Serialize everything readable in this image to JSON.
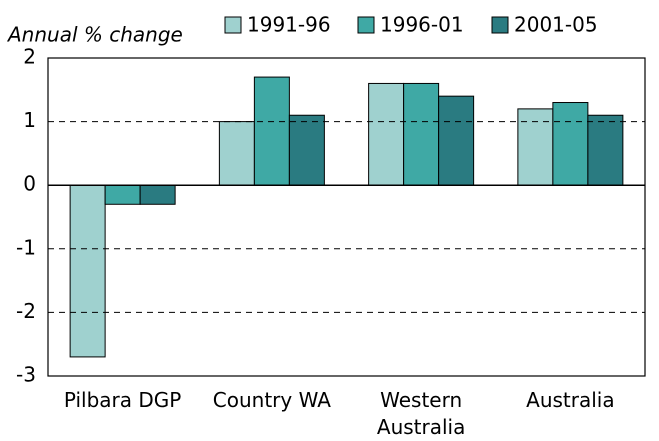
{
  "chart_data": {
    "type": "bar",
    "y_axis_label": "Annual % change",
    "categories": [
      "Pilbara DGP",
      "Country WA",
      "Western Australia",
      "Australia"
    ],
    "series": [
      {
        "name": "1991-96",
        "color": "#9fd1cf",
        "values": [
          -2.7,
          1.0,
          1.6,
          1.2
        ]
      },
      {
        "name": "1996-01",
        "color": "#3fa9a5",
        "values": [
          -0.3,
          1.7,
          1.6,
          1.3
        ]
      },
      {
        "name": "2001-05",
        "color": "#2a7b81",
        "values": [
          -0.3,
          1.1,
          1.4,
          1.1
        ]
      }
    ],
    "ylim": [
      -3,
      2
    ],
    "yticks": [
      -3,
      -2,
      -1,
      0,
      1,
      2
    ],
    "grid": true,
    "legend_position": "top"
  }
}
